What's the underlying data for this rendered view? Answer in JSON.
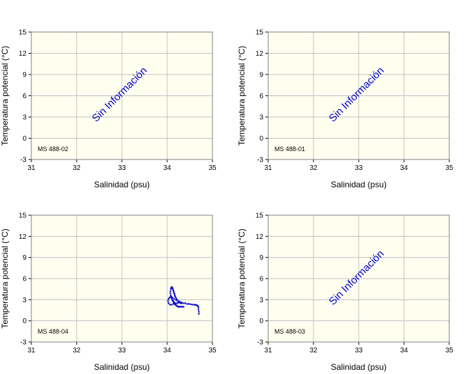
{
  "colors": {
    "plot_background": "#FFFFF0",
    "grid": "#C0C0C0",
    "frame": "#808080",
    "series": "#0000CC",
    "no_info_text": "#0000CC"
  },
  "chart_data": [
    {
      "type": "scatter",
      "station": "MS 488-02",
      "xlabel": "Salinidad (psu)",
      "ylabel": "Temperatura potencial (°C)",
      "xlim": [
        31,
        35
      ],
      "ylim": [
        -3,
        15
      ],
      "xticks": [
        "31",
        "32",
        "33",
        "34",
        "35"
      ],
      "yticks": [
        "-3",
        "0",
        "3",
        "6",
        "9",
        "12",
        "15"
      ],
      "annotation": "Sin Información",
      "series": []
    },
    {
      "type": "scatter",
      "station": "MS 488-01",
      "xlabel": "Salinidad (psu)",
      "ylabel": "Temperatura potencial (°C)",
      "xlim": [
        31,
        35
      ],
      "ylim": [
        -3,
        15
      ],
      "xticks": [
        "31",
        "32",
        "33",
        "34",
        "35"
      ],
      "yticks": [
        "-3",
        "0",
        "3",
        "6",
        "9",
        "12",
        "15"
      ],
      "annotation": "Sin Información",
      "series": []
    },
    {
      "type": "scatter",
      "station": "MS 488-04",
      "xlabel": "Salinidad (psu)",
      "ylabel": "Temperatura potencial (°C)",
      "xlim": [
        31,
        35
      ],
      "ylim": [
        -3,
        15
      ],
      "xticks": [
        "31",
        "32",
        "33",
        "34",
        "35"
      ],
      "yticks": [
        "-3",
        "0",
        "3",
        "6",
        "9",
        "12",
        "15"
      ],
      "annotation": "",
      "series": [
        {
          "name": "MS 488-04",
          "x": [
            34.7,
            34.7,
            34.69,
            34.69,
            34.68,
            34.66,
            34.63,
            34.6,
            34.56,
            34.52,
            34.48,
            34.44,
            34.4,
            34.36,
            34.32,
            34.28,
            34.25,
            34.22,
            34.2,
            34.18,
            34.17,
            34.16,
            34.15,
            34.14,
            34.13,
            34.12,
            34.11,
            34.1,
            34.09,
            34.08,
            34.07,
            34.07,
            34.08,
            34.09,
            34.1,
            34.11,
            34.12,
            34.13,
            34.14,
            34.15,
            34.16,
            34.17,
            34.18,
            34.2,
            34.22,
            34.24,
            34.26,
            34.28,
            34.3,
            34.33,
            34.36,
            34.25,
            34.2,
            34.16,
            34.12,
            34.08,
            34.05,
            34.03,
            34.02,
            34.03,
            34.06,
            34.1,
            34.14,
            34.18,
            34.22,
            34.24,
            34.26,
            34.28,
            34.3,
            34.32
          ],
          "y": [
            1.0,
            1.3,
            1.6,
            1.9,
            2.1,
            2.2,
            2.25,
            2.3,
            2.3,
            2.35,
            2.4,
            2.4,
            2.5,
            2.5,
            2.6,
            2.7,
            2.8,
            3.0,
            3.2,
            3.4,
            3.6,
            3.8,
            4.0,
            4.2,
            4.4,
            4.6,
            4.7,
            4.8,
            4.7,
            4.5,
            4.2,
            3.9,
            3.6,
            3.4,
            3.2,
            3.0,
            2.9,
            2.8,
            2.7,
            2.6,
            2.5,
            2.4,
            2.3,
            2.2,
            2.1,
            2.0,
            2.0,
            2.0,
            2.0,
            2.0,
            2.0,
            2.6,
            2.9,
            3.1,
            3.3,
            3.4,
            3.3,
            3.1,
            2.8,
            2.5,
            2.3,
            2.3,
            2.4,
            2.5,
            2.5,
            2.6,
            2.6,
            2.6,
            2.5,
            2.5
          ]
        }
      ]
    },
    {
      "type": "scatter",
      "station": "MS 488-03",
      "xlabel": "Salinidad (psu)",
      "ylabel": "Temperatura potencial (°C)",
      "xlim": [
        31,
        35
      ],
      "ylim": [
        -3,
        15
      ],
      "xticks": [
        "31",
        "32",
        "33",
        "34",
        "35"
      ],
      "yticks": [
        "-3",
        "0",
        "3",
        "6",
        "9",
        "12",
        "15"
      ],
      "annotation": "Sin Información",
      "series": []
    }
  ]
}
